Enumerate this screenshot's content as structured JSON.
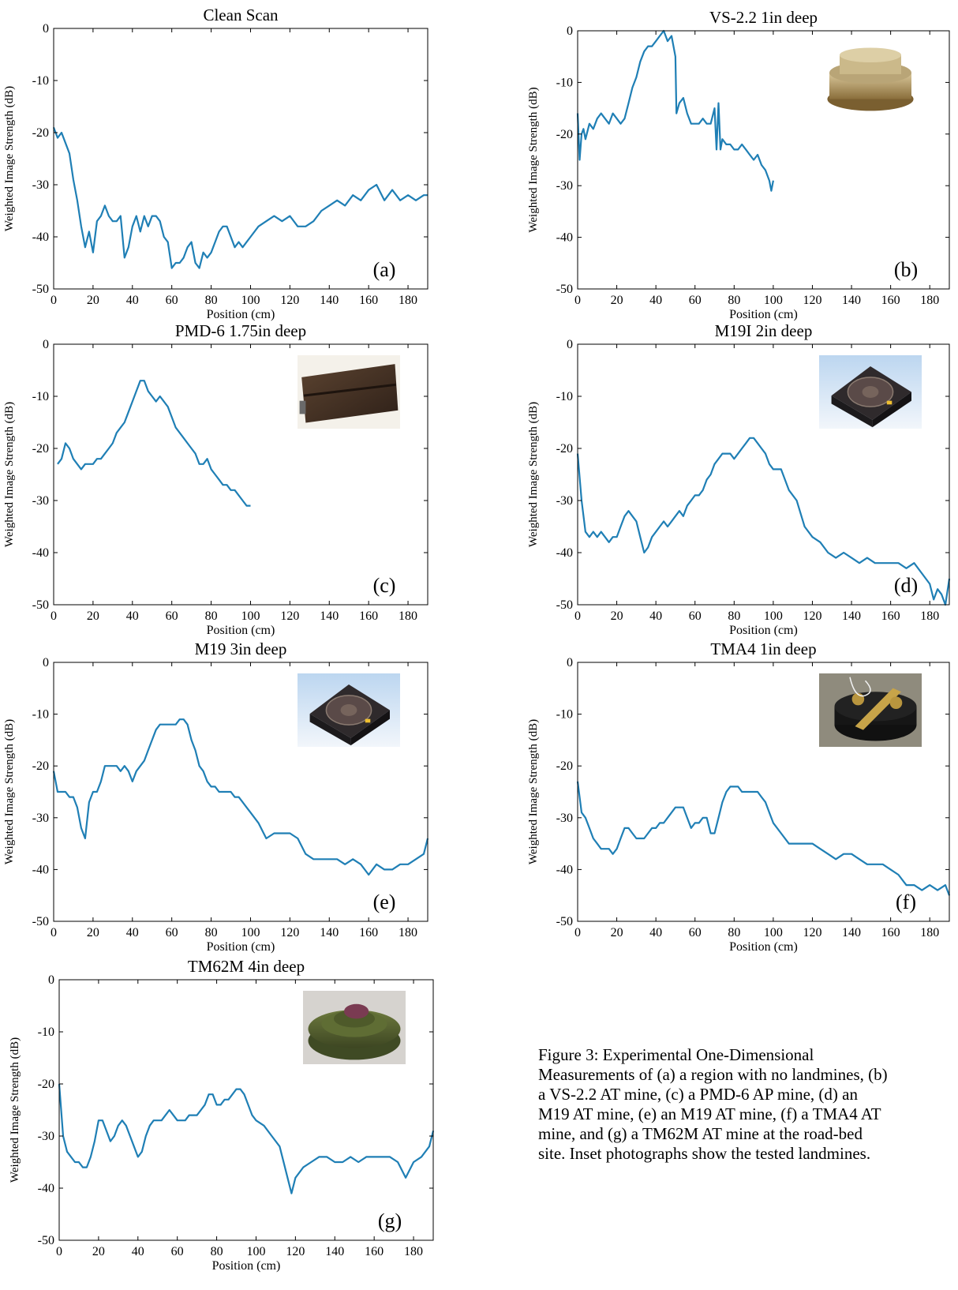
{
  "figure": {
    "caption": "Figure 3: Experimental One-Dimensional\nMeasurements of (a) a region with no landmines, (b)\na VS-2.2 AT mine, (c) a PMD-6 AP mine, (d) an\nM19 AT mine, (e) an M19 AT mine, (f) a TMA4 AT\nmine, and (g) a TM62M AT mine at the road-bed\nsite.  Inset photographs show the tested landmines.",
    "line_color": "#1f7fb5"
  },
  "chart_data": [
    {
      "type": "line",
      "panel_label": "(a)",
      "title": "Clean Scan",
      "xlabel": "Position (cm)",
      "ylabel": "Weighted Image Strength (dB)",
      "xlim": [
        0,
        190
      ],
      "ylim": [
        -50,
        0
      ],
      "xticks": [
        0,
        20,
        40,
        60,
        80,
        100,
        120,
        140,
        160,
        180
      ],
      "yticks": [
        0,
        -10,
        -20,
        -30,
        -40,
        -50
      ],
      "inset_photo": null,
      "x": [
        0,
        2,
        4,
        6,
        8,
        10,
        12,
        14,
        16,
        18,
        20,
        22,
        24,
        26,
        28,
        30,
        32,
        34,
        36,
        38,
        40,
        42,
        44,
        46,
        48,
        50,
        52,
        54,
        56,
        58,
        60,
        62,
        64,
        66,
        68,
        70,
        72,
        74,
        76,
        78,
        80,
        82,
        84,
        86,
        88,
        90,
        92,
        94,
        96,
        98,
        100,
        104,
        108,
        112,
        116,
        120,
        124,
        128,
        132,
        136,
        140,
        144,
        148,
        152,
        156,
        160,
        164,
        168,
        172,
        176,
        180,
        184,
        188,
        190
      ],
      "y": [
        -19,
        -21,
        -20,
        -22,
        -24,
        -29,
        -33,
        -38,
        -42,
        -39,
        -43,
        -37,
        -36,
        -34,
        -36,
        -37,
        -37,
        -36,
        -44,
        -42,
        -38,
        -36,
        -39,
        -36,
        -38,
        -36,
        -36,
        -37,
        -40,
        -41,
        -46,
        -45,
        -45,
        -44,
        -42,
        -41,
        -45,
        -46,
        -43,
        -44,
        -43,
        -41,
        -39,
        -38,
        -38,
        -40,
        -42,
        -41,
        -42,
        -41,
        -40,
        -38,
        -37,
        -36,
        -37,
        -36,
        -38,
        -38,
        -37,
        -35,
        -34,
        -33,
        -34,
        -32,
        -33,
        -31,
        -30,
        -33,
        -31,
        -33,
        -32,
        -33,
        -32,
        -32
      ]
    },
    {
      "type": "line",
      "panel_label": "(b)",
      "title": "VS-2.2 1in deep",
      "xlabel": "Position (cm)",
      "ylabel": "Weighted Image Strength (dB)",
      "xlim": [
        0,
        190
      ],
      "ylim": [
        -50,
        0
      ],
      "xticks": [
        0,
        20,
        40,
        60,
        80,
        100,
        120,
        140,
        160,
        180
      ],
      "yticks": [
        0,
        -10,
        -20,
        -30,
        -40,
        -50
      ],
      "inset_photo": "vs-2.2-mine-photo",
      "x": [
        0,
        1,
        2,
        3,
        4,
        6,
        8,
        10,
        12,
        14,
        16,
        18,
        20,
        22,
        24,
        26,
        28,
        30,
        32,
        34,
        36,
        38,
        40,
        42,
        44,
        46,
        48,
        50,
        50.5,
        52,
        54,
        56,
        58,
        60,
        62,
        64,
        66,
        68,
        70,
        71,
        72,
        73,
        74,
        76,
        78,
        80,
        82,
        84,
        86,
        88,
        90,
        92,
        94,
        96,
        98,
        99,
        100
      ],
      "y": [
        -16,
        -25,
        -20,
        -19,
        -21,
        -18,
        -19,
        -17,
        -16,
        -17,
        -18,
        -16,
        -17,
        -18,
        -17,
        -14,
        -11,
        -9,
        -6,
        -4,
        -3,
        -3,
        -2,
        -1,
        0,
        -2,
        -1,
        -5,
        -16,
        -14,
        -13,
        -16,
        -18,
        -18,
        -18,
        -17,
        -18,
        -18,
        -15,
        -23,
        -14,
        -23,
        -21,
        -22,
        -22,
        -23,
        -23,
        -22,
        -23,
        -24,
        -25,
        -24,
        -26,
        -27,
        -29,
        -31,
        -29
      ]
    },
    {
      "type": "line",
      "panel_label": "(c)",
      "title": "PMD-6 1.75in deep",
      "xlabel": "Position (cm)",
      "ylabel": "Weighted Image Strength (dB)",
      "xlim": [
        0,
        190
      ],
      "ylim": [
        -50,
        0
      ],
      "xticks": [
        0,
        20,
        40,
        60,
        80,
        100,
        120,
        140,
        160,
        180
      ],
      "yticks": [
        0,
        -10,
        -20,
        -30,
        -40,
        -50
      ],
      "inset_photo": "pmd-6-mine-photo",
      "x": [
        2,
        4,
        6,
        8,
        10,
        12,
        14,
        16,
        18,
        20,
        22,
        24,
        26,
        28,
        30,
        32,
        34,
        36,
        38,
        40,
        42,
        44,
        46,
        48,
        50,
        52,
        54,
        56,
        58,
        60,
        62,
        64,
        66,
        68,
        70,
        72,
        74,
        76,
        78,
        80,
        82,
        84,
        86,
        88,
        90,
        92,
        94,
        96,
        98,
        100
      ],
      "y": [
        -23,
        -22,
        -19,
        -20,
        -22,
        -23,
        -24,
        -23,
        -23,
        -23,
        -22,
        -22,
        -21,
        -20,
        -19,
        -17,
        -16,
        -15,
        -13,
        -11,
        -9,
        -7,
        -7,
        -9,
        -10,
        -11,
        -10,
        -11,
        -12,
        -14,
        -16,
        -17,
        -18,
        -19,
        -20,
        -21,
        -23,
        -23,
        -22,
        -24,
        -25,
        -26,
        -27,
        -27,
        -28,
        -28,
        -29,
        -30,
        -31,
        -31
      ]
    },
    {
      "type": "line",
      "panel_label": "(d)",
      "title": "M19I 2in deep",
      "xlabel": "Position (cm)",
      "ylabel": "Weighted Image Strength (dB)",
      "xlim": [
        0,
        190
      ],
      "ylim": [
        -50,
        0
      ],
      "xticks": [
        0,
        20,
        40,
        60,
        80,
        100,
        120,
        140,
        160,
        180
      ],
      "yticks": [
        0,
        -10,
        -20,
        -30,
        -40,
        -50
      ],
      "inset_photo": "m19i-mine-photo",
      "x": [
        0,
        2,
        4,
        6,
        8,
        10,
        12,
        14,
        16,
        18,
        20,
        22,
        24,
        26,
        28,
        30,
        32,
        34,
        36,
        38,
        40,
        42,
        44,
        46,
        48,
        50,
        52,
        54,
        56,
        58,
        60,
        62,
        64,
        66,
        68,
        70,
        72,
        74,
        76,
        78,
        80,
        82,
        84,
        86,
        88,
        90,
        92,
        94,
        96,
        98,
        100,
        104,
        108,
        112,
        116,
        120,
        124,
        128,
        132,
        136,
        140,
        144,
        148,
        152,
        156,
        160,
        164,
        168,
        172,
        176,
        180,
        182,
        184,
        186,
        188,
        190
      ],
      "y": [
        -21,
        -30,
        -36,
        -37,
        -36,
        -37,
        -36,
        -37,
        -38,
        -37,
        -37,
        -35,
        -33,
        -32,
        -33,
        -34,
        -37,
        -40,
        -39,
        -37,
        -36,
        -35,
        -34,
        -35,
        -34,
        -33,
        -32,
        -33,
        -31,
        -30,
        -29,
        -29,
        -28,
        -26,
        -25,
        -23,
        -22,
        -21,
        -21,
        -21,
        -22,
        -21,
        -20,
        -19,
        -18,
        -18,
        -19,
        -20,
        -21,
        -23,
        -24,
        -24,
        -28,
        -30,
        -35,
        -37,
        -38,
        -40,
        -41,
        -40,
        -41,
        -42,
        -41,
        -42,
        -42,
        -42,
        -42,
        -43,
        -42,
        -44,
        -46,
        -49,
        -47,
        -48,
        -50,
        -45
      ]
    },
    {
      "type": "line",
      "panel_label": "(e)",
      "title": "M19 3in deep",
      "xlabel": "Position (cm)",
      "ylabel": "Weighted Image Strength (dB)",
      "xlim": [
        0,
        190
      ],
      "ylim": [
        -50,
        0
      ],
      "xticks": [
        0,
        20,
        40,
        60,
        80,
        100,
        120,
        140,
        160,
        180
      ],
      "yticks": [
        0,
        -10,
        -20,
        -30,
        -40,
        -50
      ],
      "inset_photo": "m19-mine-photo",
      "x": [
        0,
        2,
        4,
        6,
        8,
        10,
        12,
        14,
        16,
        18,
        20,
        22,
        24,
        26,
        28,
        30,
        32,
        34,
        36,
        38,
        40,
        42,
        44,
        46,
        48,
        50,
        52,
        54,
        56,
        58,
        60,
        62,
        64,
        66,
        68,
        70,
        72,
        74,
        76,
        78,
        80,
        82,
        84,
        86,
        88,
        90,
        92,
        94,
        96,
        98,
        100,
        104,
        108,
        112,
        116,
        120,
        124,
        128,
        132,
        136,
        140,
        144,
        148,
        152,
        156,
        160,
        164,
        168,
        172,
        176,
        180,
        184,
        188,
        190
      ],
      "y": [
        -21,
        -25,
        -25,
        -25,
        -26,
        -26,
        -28,
        -32,
        -34,
        -27,
        -25,
        -25,
        -23,
        -20,
        -20,
        -20,
        -20,
        -21,
        -20,
        -21,
        -23,
        -21,
        -20,
        -19,
        -17,
        -15,
        -13,
        -12,
        -12,
        -12,
        -12,
        -12,
        -11,
        -11,
        -12,
        -15,
        -17,
        -20,
        -21,
        -23,
        -24,
        -24,
        -25,
        -25,
        -25,
        -25,
        -26,
        -26,
        -27,
        -28,
        -29,
        -31,
        -34,
        -33,
        -33,
        -33,
        -34,
        -37,
        -38,
        -38,
        -38,
        -38,
        -39,
        -38,
        -39,
        -41,
        -39,
        -40,
        -40,
        -39,
        -39,
        -38,
        -37,
        -34
      ]
    },
    {
      "type": "line",
      "panel_label": "(f)",
      "title": "TMA4 1in deep",
      "xlabel": "Position (cm)",
      "ylabel": "Weighted Image Strength (dB)",
      "xlim": [
        0,
        190
      ],
      "ylim": [
        -50,
        0
      ],
      "xticks": [
        0,
        20,
        40,
        60,
        80,
        100,
        120,
        140,
        160,
        180
      ],
      "yticks": [
        0,
        -10,
        -20,
        -30,
        -40,
        -50
      ],
      "inset_photo": "tma4-mine-photo",
      "x": [
        0,
        2,
        4,
        6,
        8,
        10,
        12,
        14,
        16,
        18,
        20,
        22,
        24,
        26,
        28,
        30,
        32,
        34,
        36,
        38,
        40,
        42,
        44,
        46,
        48,
        50,
        52,
        54,
        56,
        58,
        60,
        62,
        64,
        66,
        68,
        70,
        72,
        74,
        76,
        78,
        80,
        82,
        84,
        86,
        88,
        90,
        92,
        94,
        96,
        98,
        100,
        104,
        108,
        112,
        116,
        120,
        124,
        128,
        132,
        136,
        140,
        144,
        148,
        152,
        156,
        160,
        164,
        168,
        172,
        176,
        180,
        184,
        188,
        190
      ],
      "y": [
        -23,
        -29,
        -30,
        -32,
        -34,
        -35,
        -36,
        -36,
        -36,
        -37,
        -36,
        -34,
        -32,
        -32,
        -33,
        -34,
        -34,
        -34,
        -33,
        -32,
        -32,
        -31,
        -31,
        -30,
        -29,
        -28,
        -28,
        -28,
        -30,
        -32,
        -31,
        -31,
        -30,
        -30,
        -33,
        -33,
        -30,
        -27,
        -25,
        -24,
        -24,
        -24,
        -25,
        -25,
        -25,
        -25,
        -25,
        -26,
        -27,
        -29,
        -31,
        -33,
        -35,
        -35,
        -35,
        -35,
        -36,
        -37,
        -38,
        -37,
        -37,
        -38,
        -39,
        -39,
        -39,
        -40,
        -41,
        -43,
        -43,
        -44,
        -43,
        -44,
        -43,
        -45
      ]
    },
    {
      "type": "line",
      "panel_label": "(g)",
      "title": "TM62M 4in deep",
      "xlabel": "Position (cm)",
      "ylabel": "Weighted Image Strength (dB)",
      "xlim": [
        0,
        190
      ],
      "ylim": [
        -50,
        0
      ],
      "xticks": [
        0,
        20,
        40,
        60,
        80,
        100,
        120,
        140,
        160,
        180
      ],
      "yticks": [
        0,
        -10,
        -20,
        -30,
        -40,
        -50
      ],
      "inset_photo": "tm62m-mine-photo",
      "x": [
        0,
        2,
        4,
        6,
        8,
        10,
        12,
        14,
        16,
        18,
        20,
        22,
        24,
        26,
        28,
        30,
        32,
        34,
        36,
        38,
        40,
        42,
        44,
        46,
        48,
        50,
        52,
        54,
        56,
        58,
        60,
        62,
        64,
        66,
        68,
        70,
        72,
        74,
        76,
        78,
        80,
        82,
        84,
        86,
        88,
        90,
        92,
        94,
        96,
        98,
        100,
        104,
        108,
        112,
        116,
        118,
        120,
        124,
        128,
        132,
        136,
        140,
        144,
        148,
        152,
        156,
        160,
        164,
        168,
        172,
        176,
        180,
        184,
        188,
        190
      ],
      "y": [
        -20,
        -30,
        -33,
        -34,
        -35,
        -35,
        -36,
        -36,
        -34,
        -31,
        -27,
        -27,
        -29,
        -31,
        -30,
        -28,
        -27,
        -28,
        -30,
        -32,
        -34,
        -33,
        -30,
        -28,
        -27,
        -27,
        -27,
        -26,
        -25,
        -26,
        -27,
        -27,
        -27,
        -26,
        -26,
        -26,
        -25,
        -24,
        -22,
        -22,
        -24,
        -24,
        -23,
        -23,
        -22,
        -21,
        -21,
        -22,
        -24,
        -26,
        -27,
        -28,
        -30,
        -32,
        -38,
        -41,
        -38,
        -36,
        -35,
        -34,
        -34,
        -35,
        -35,
        -34,
        -35,
        -34,
        -34,
        -34,
        -34,
        -35,
        -38,
        -35,
        -34,
        -32,
        -29
      ]
    }
  ]
}
